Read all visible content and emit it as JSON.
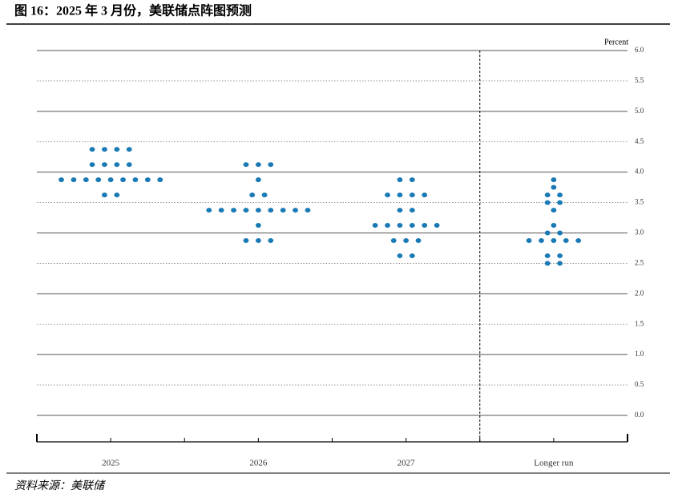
{
  "title": "图 16：2025 年 3 月份，美联储点阵图预测",
  "source": "资料来源：美联储",
  "chart_data": {
    "type": "dotplot",
    "y_label": "Percent",
    "categories": [
      "2025",
      "2026",
      "2027",
      "Longer run"
    ],
    "values": [
      [
        4.375,
        4.375,
        4.375,
        4.375,
        4.125,
        4.125,
        4.125,
        4.125,
        3.875,
        3.875,
        3.875,
        3.875,
        3.875,
        3.875,
        3.875,
        3.875,
        3.875,
        3.625,
        3.625
      ],
      [
        4.125,
        4.125,
        4.125,
        3.875,
        3.625,
        3.625,
        3.375,
        3.375,
        3.375,
        3.375,
        3.375,
        3.375,
        3.375,
        3.375,
        3.375,
        3.125,
        2.875,
        2.875,
        2.875
      ],
      [
        3.875,
        3.875,
        3.625,
        3.625,
        3.625,
        3.625,
        3.375,
        3.375,
        3.125,
        3.125,
        3.125,
        3.125,
        3.125,
        3.125,
        2.875,
        2.875,
        2.875,
        2.625,
        2.625
      ],
      [
        3.875,
        3.75,
        3.625,
        3.625,
        3.5,
        3.5,
        3.375,
        3.125,
        3.0,
        3.0,
        2.875,
        2.875,
        2.875,
        2.875,
        2.875,
        2.625,
        2.625,
        2.5,
        2.5
      ]
    ],
    "color": "#1a7ab5",
    "ylim": [
      0,
      6
    ],
    "yticks": [
      {
        "value": 0,
        "label": "0.0"
      },
      0.5,
      {
        "value": 1,
        "label": "1.0"
      },
      1.5,
      {
        "value": 2,
        "label": "2.0"
      },
      2.5,
      {
        "value": 3,
        "label": "3.0"
      },
      3.5,
      {
        "value": 4,
        "label": "4.0"
      },
      4.5,
      {
        "value": 5,
        "label": "5.0"
      },
      5.5,
      {
        "value": 6,
        "label": "6.0"
      }
    ],
    "grid": true
  }
}
